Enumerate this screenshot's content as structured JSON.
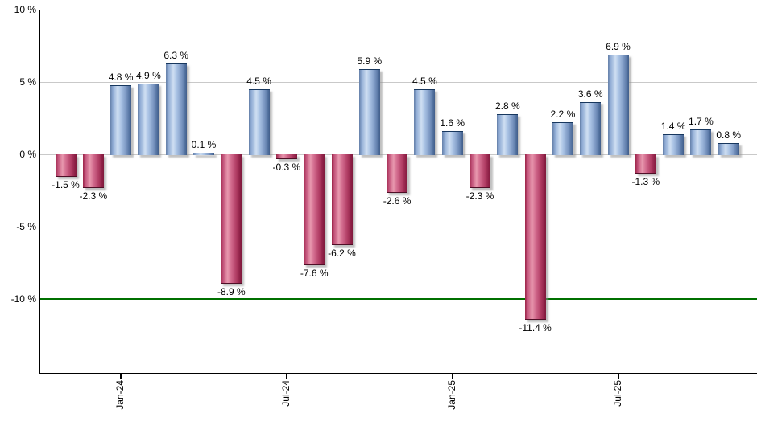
{
  "chart_data": {
    "type": "bar",
    "title": "",
    "values": [
      -1.5,
      -2.3,
      4.8,
      4.9,
      6.3,
      0.1,
      -8.9,
      4.5,
      -0.3,
      -7.6,
      -6.2,
      5.9,
      -2.6,
      4.5,
      1.6,
      -2.3,
      2.8,
      -11.4,
      2.2,
      3.6,
      6.9,
      -1.3,
      1.4,
      1.7,
      0.8
    ],
    "bar_labels": [
      "-1.5 %",
      "-2.3 %",
      "4.8 %",
      "4.9 %",
      "6.3 %",
      "0.1 %",
      "-8.9 %",
      "4.5 %",
      "-0.3 %",
      "-7.6 %",
      "-6.2 %",
      "5.9 %",
      "-2.6 %",
      "4.5 %",
      "1.6 %",
      "-2.3 %",
      "2.8 %",
      "-11.4 %",
      "2.2 %",
      "3.6 %",
      "6.9 %",
      "-1.3 %",
      "1.4 %",
      "1.7 %",
      "0.8 %"
    ],
    "x_ticks": [
      {
        "index": 2,
        "label": "Jan-24"
      },
      {
        "index": 8,
        "label": "Jul-24"
      },
      {
        "index": 14,
        "label": "Jan-25"
      },
      {
        "index": 20,
        "label": "Jul-25"
      }
    ],
    "y_ticks": [
      {
        "value": 10,
        "label": "10 %"
      },
      {
        "value": 5,
        "label": "5 %"
      },
      {
        "value": 0,
        "label": "0 %"
      },
      {
        "value": -5,
        "label": "-5 %"
      },
      {
        "value": -10,
        "label": "-10 %"
      }
    ],
    "ylim": [
      -15.1,
      10
    ],
    "grid": true,
    "legend": "none",
    "reference_line": {
      "value": -10,
      "color": "#007000"
    },
    "colors": {
      "positive_bar": "#88a8d8",
      "negative_bar": "#c43a62",
      "gridline": "#c9c9c9",
      "reference_line": "#007000",
      "axis": "#000000",
      "label_text": "#000000",
      "background": "#ffffff"
    }
  }
}
